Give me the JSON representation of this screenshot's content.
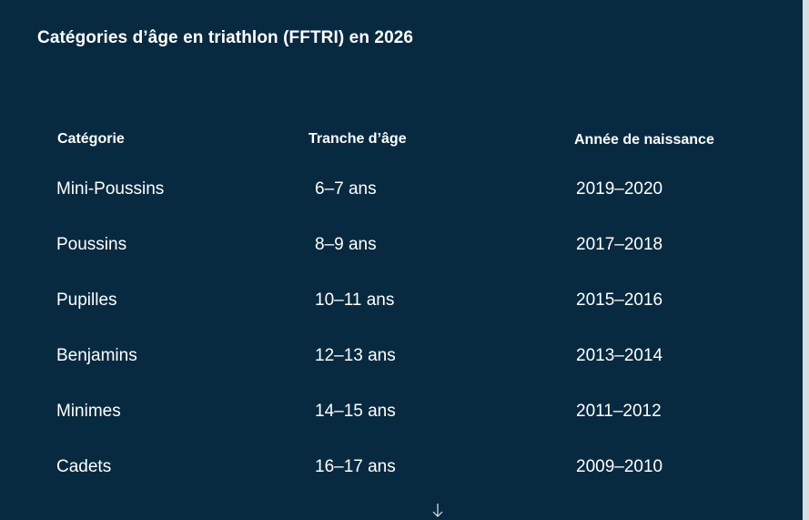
{
  "title": "Catégories d’âge en triathlon (FFTRI) en 2026",
  "table": {
    "headers": [
      "Catégorie",
      "Tranche d’âge",
      "Année de naissance"
    ],
    "rows": [
      [
        "Mini-Poussins",
        "6–7 ans",
        "2019–2020"
      ],
      [
        "Poussins",
        "8–9 ans",
        "2017–2018"
      ],
      [
        "Pupilles",
        "10–11 ans",
        "2015–2016"
      ],
      [
        "Benjamins",
        "12–13 ans",
        "2013–2014"
      ],
      [
        "Minimes",
        "14–15 ans",
        "2011–2012"
      ],
      [
        "Cadets",
        "16–17 ans",
        "2009–2010"
      ]
    ]
  },
  "icons": {
    "scroll_indicator": "arrow-down-icon"
  },
  "colors": {
    "background": "#082a40",
    "text": "#ffffff"
  }
}
